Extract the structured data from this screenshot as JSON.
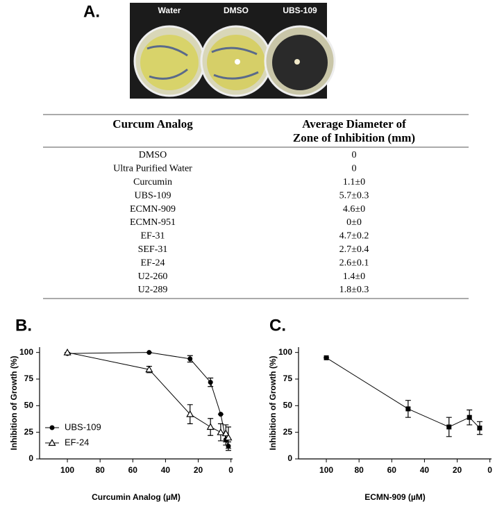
{
  "panel_a": {
    "label": "A.",
    "photo_labels": [
      "Water",
      "DMSO",
      "UBS-109"
    ],
    "table": {
      "columns": [
        "Curcum Analog",
        [
          "Average Diameter of",
          "Zone of Inhibition (mm)"
        ]
      ],
      "rows": [
        [
          "DMSO",
          "0"
        ],
        [
          "Ultra Purified Water",
          "0"
        ],
        [
          "Curcumin",
          "1.1±0"
        ],
        [
          "UBS-109",
          "5.7±0.3"
        ],
        [
          "ECMN-909",
          "4.6±0"
        ],
        [
          "ECMN-951",
          "0±0"
        ],
        [
          "EF-31",
          "4.7±0.2"
        ],
        [
          "SEF-31",
          "2.7±0.4"
        ],
        [
          "EF-24",
          "2.6±0.1"
        ],
        [
          "U2-260",
          "1.4±0"
        ],
        [
          "U2-289",
          "1.8±0.3"
        ]
      ]
    }
  },
  "chart_data": [
    {
      "type": "line",
      "panel_label": "B.",
      "ylabel": "Inhibition of Growth (%)",
      "xlabel": "Curcumin Analog (µM)",
      "xlim": [
        117,
        -1
      ],
      "ylim": [
        0,
        105
      ],
      "xticks": [
        100,
        80,
        60,
        40,
        20,
        0
      ],
      "yticks": [
        0,
        25,
        50,
        75,
        100
      ],
      "legend": "lower left",
      "series": [
        {
          "name": "UBS-109",
          "color": "#000000",
          "marker": "circle",
          "x": [
            100,
            50,
            25,
            12.5,
            6.25,
            3.125,
            1.5625
          ],
          "values": [
            99,
            100,
            94,
            72,
            42,
            18,
            12
          ],
          "errors": [
            0,
            0,
            3,
            4,
            0,
            5,
            4
          ]
        },
        {
          "name": "EF-24",
          "color": "#000000",
          "marker": "triangle",
          "x": [
            100,
            50,
            25,
            12.5,
            6.25,
            3.125,
            1.5625
          ],
          "values": [
            100,
            84,
            42,
            30,
            25,
            24,
            20
          ],
          "errors": [
            0,
            3,
            9,
            8,
            8,
            8,
            10
          ]
        }
      ]
    },
    {
      "type": "line",
      "panel_label": "C.",
      "ylabel": "Inhibition of Growth (%)",
      "xlabel": "ECMN-909 (µM)",
      "xlim": [
        117,
        -1
      ],
      "ylim": [
        0,
        105
      ],
      "xticks": [
        100,
        80,
        60,
        40,
        20,
        0
      ],
      "yticks": [
        0,
        25,
        50,
        75,
        100
      ],
      "series": [
        {
          "color": "#000000",
          "marker": "square",
          "x": [
            100,
            50,
            25,
            12.5,
            6.25
          ],
          "values": [
            95,
            47,
            30,
            39,
            29
          ],
          "errors": [
            0,
            8,
            9,
            7,
            6
          ]
        }
      ]
    }
  ]
}
